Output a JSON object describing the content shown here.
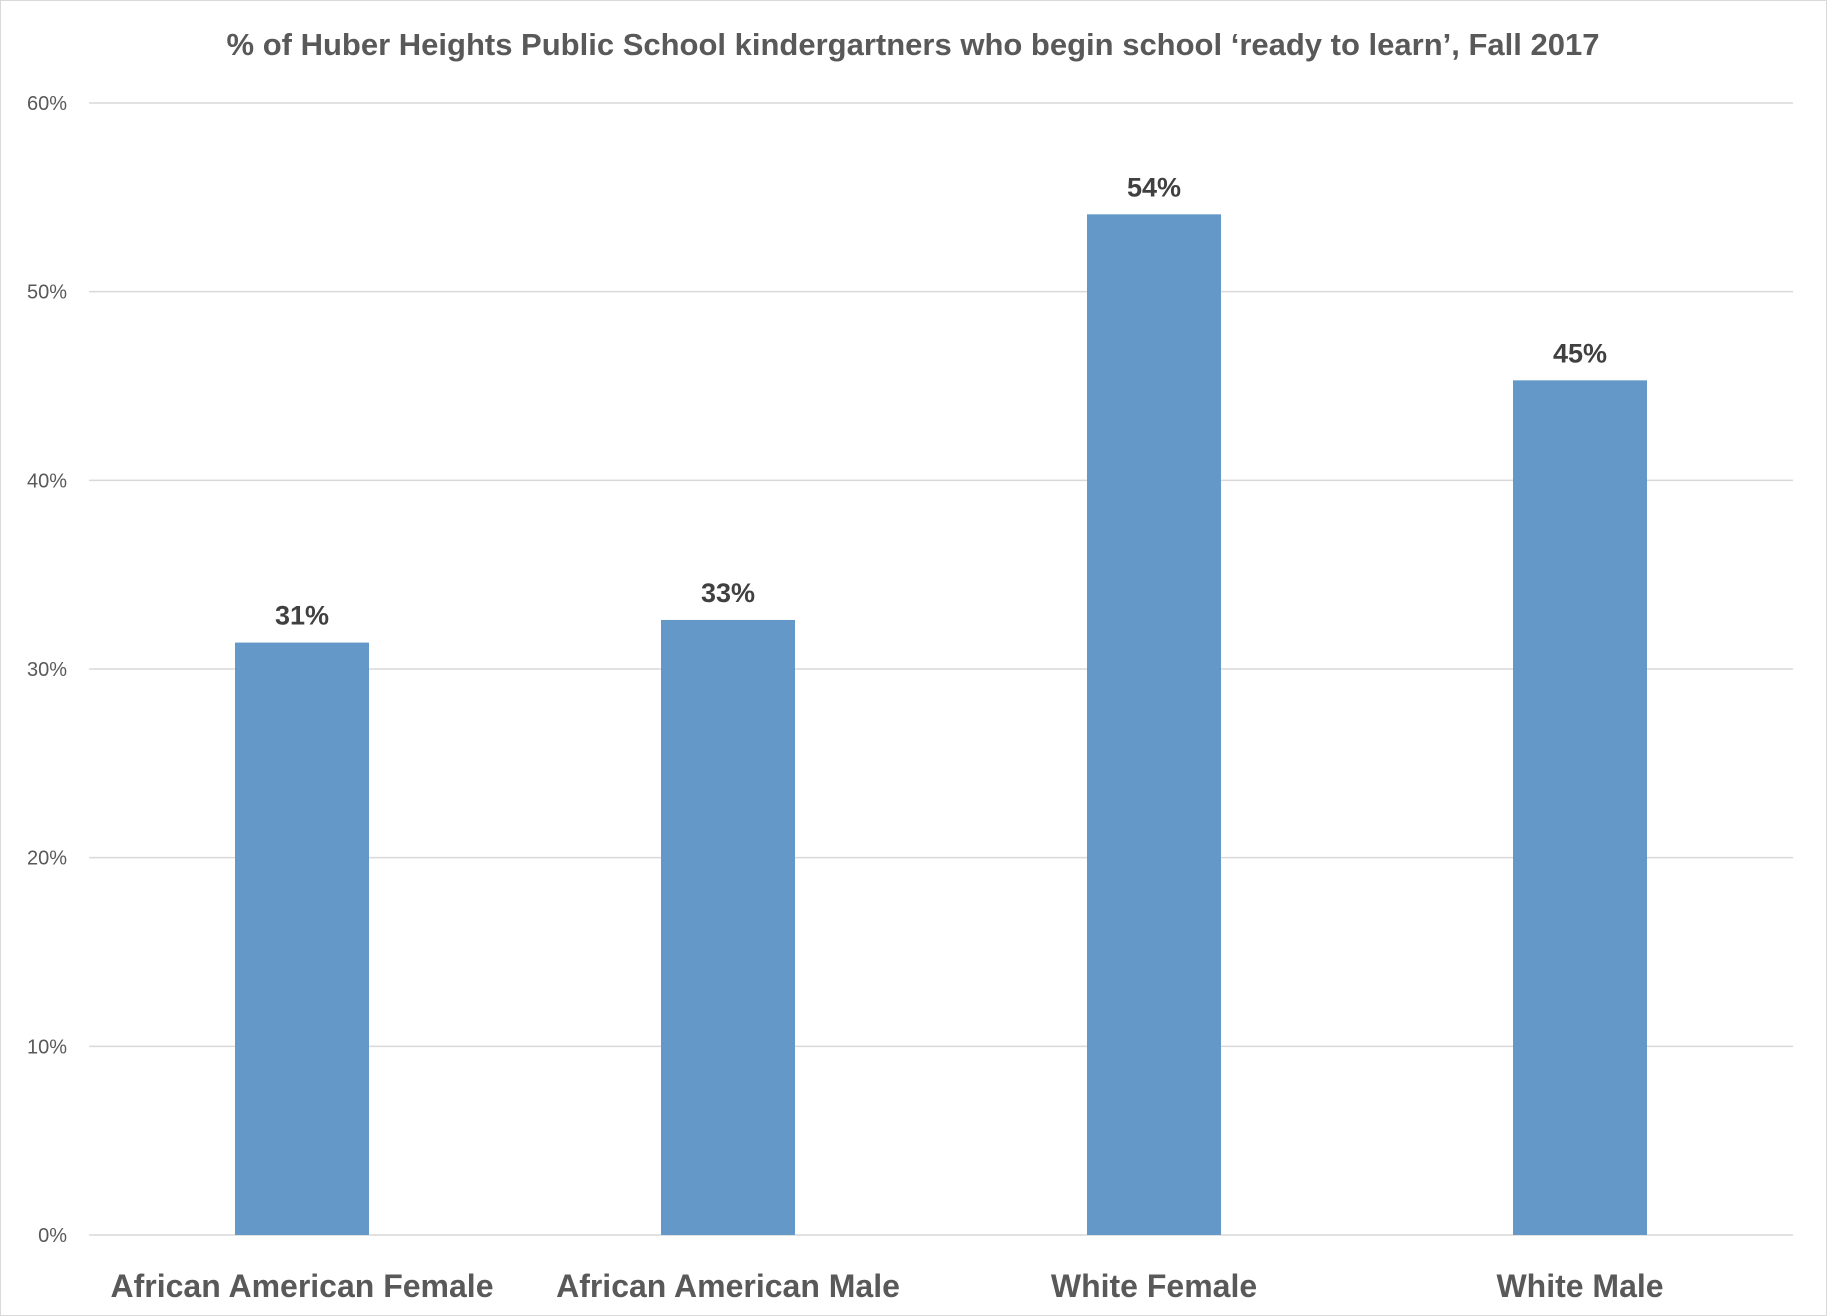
{
  "chart_data": {
    "type": "bar",
    "title": "% of Huber Heights Public School kindergartners who begin school ‘ready to learn’, Fall 2017",
    "xlabel": "",
    "ylabel": "",
    "categories": [
      "African American Female",
      "African American Male",
      "White Female",
      "White Male"
    ],
    "values": [
      31.4,
      32.6,
      54.1,
      45.3
    ],
    "data_labels": [
      "31%",
      "33%",
      "54%",
      "45%"
    ],
    "ylim": [
      0,
      60
    ],
    "y_ticks": [
      0,
      10,
      20,
      30,
      40,
      50,
      60
    ],
    "y_tick_labels": [
      "0%",
      "10%",
      "20%",
      "30%",
      "40%",
      "50%",
      "60%"
    ],
    "grid": true,
    "legend": "none",
    "colors": {
      "bar": "#6398c9",
      "grid": "#d9d9d9",
      "text": "#595959",
      "data_label": "#404040"
    }
  }
}
